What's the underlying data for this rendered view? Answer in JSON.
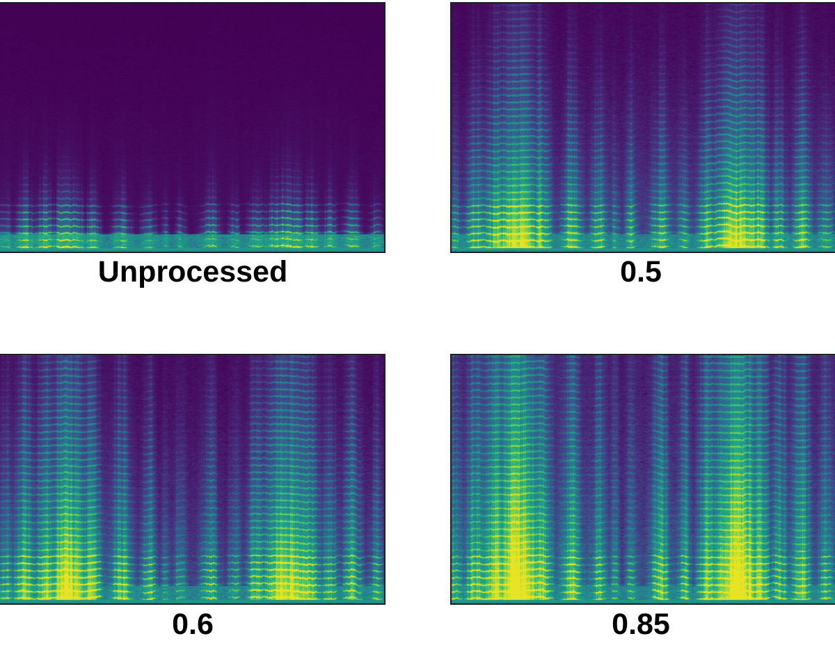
{
  "figure": {
    "background": "#ffffff",
    "label_color": "#000000"
  },
  "chart_data": {
    "type": "heatmap",
    "subtype": "audio-spectrogram-grid",
    "layout": {
      "rows": 2,
      "cols": 2,
      "axes_ticks": false,
      "colorbar": false,
      "labels_position": "below"
    },
    "colormap": "viridis",
    "colormap_stops": [
      "#440154",
      "#482475",
      "#414487",
      "#355f8d",
      "#2a788e",
      "#21918c",
      "#22a884",
      "#44bf70",
      "#7ad151",
      "#bddf26",
      "#fde725"
    ],
    "panels": [
      {
        "label": "Unprocessed",
        "seed": 11,
        "bg_top": 0.004,
        "bg_bottom": 0.05,
        "noise": 0.018,
        "reach": 0.1,
        "tall_amp": 0.0,
        "tall_fall": 2.0,
        "striation_amp": 0.3,
        "activity_height_frac": 0.25
      },
      {
        "label": "0.5",
        "seed": 22,
        "bg_top": 0.02,
        "bg_bottom": 0.18,
        "noise": 0.055,
        "reach": 0.3,
        "tall_amp": 0.22,
        "tall_fall": 1.5,
        "striation_amp": 0.28,
        "activity_height_frac": 0.8
      },
      {
        "label": "0.6",
        "seed": 33,
        "bg_top": 0.035,
        "bg_bottom": 0.21,
        "noise": 0.07,
        "reach": 0.45,
        "tall_amp": 0.24,
        "tall_fall": 1.1,
        "striation_amp": 0.28,
        "activity_height_frac": 0.92
      },
      {
        "label": "0.85",
        "seed": 44,
        "bg_top": 0.085,
        "bg_bottom": 0.26,
        "noise": 0.1,
        "reach": 0.72,
        "tall_amp": 0.26,
        "tall_fall": 0.65,
        "striation_amp": 0.26,
        "activity_height_frac": 1.0
      }
    ],
    "bursts": [
      {
        "c": 0.012,
        "w": 0.016,
        "s": 0.6
      },
      {
        "c": 0.065,
        "w": 0.02,
        "s": 0.85
      },
      {
        "c": 0.115,
        "w": 0.02,
        "s": 0.95,
        "tall": 0.35
      },
      {
        "c": 0.175,
        "w": 0.042,
        "s": 1.0,
        "tall": 1
      },
      {
        "c": 0.238,
        "w": 0.018,
        "s": 0.85,
        "tall": 0.3
      },
      {
        "c": 0.315,
        "w": 0.02,
        "s": 0.8
      },
      {
        "c": 0.385,
        "w": 0.016,
        "s": 0.7
      },
      {
        "c": 0.428,
        "w": 0.009,
        "s": 0.45
      },
      {
        "c": 0.468,
        "w": 0.011,
        "s": 0.55
      },
      {
        "c": 0.545,
        "w": 0.018,
        "s": 0.75
      },
      {
        "c": 0.608,
        "w": 0.013,
        "s": 0.6
      },
      {
        "c": 0.665,
        "w": 0.018,
        "s": 0.8,
        "tall": 0.3
      },
      {
        "c": 0.745,
        "w": 0.048,
        "s": 1.0,
        "tall": 1
      },
      {
        "c": 0.805,
        "w": 0.018,
        "s": 0.85,
        "tall": 0.3
      },
      {
        "c": 0.855,
        "w": 0.016,
        "s": 0.7
      },
      {
        "c": 0.912,
        "w": 0.018,
        "s": 0.75,
        "tall": 0.5
      },
      {
        "c": 0.975,
        "w": 0.014,
        "s": 0.6
      }
    ]
  }
}
